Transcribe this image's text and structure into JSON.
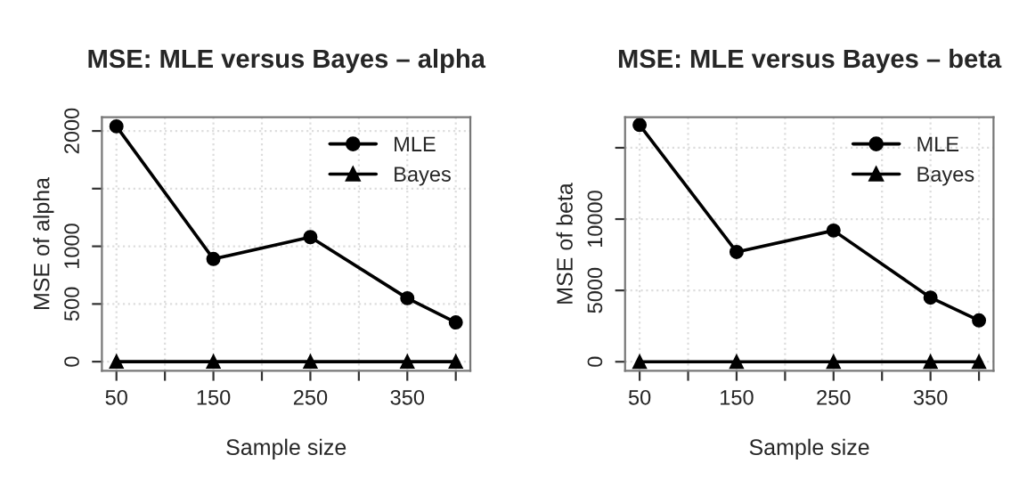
{
  "chart_data": [
    {
      "type": "line",
      "title": "MSE: MLE versus Bayes – alpha",
      "xlabel": "Sample size",
      "ylabel": "MSE of alpha",
      "x": [
        50,
        150,
        250,
        350,
        400
      ],
      "series": [
        {
          "name": "MLE",
          "color": "#000000",
          "marker": "circle",
          "values": [
            2040,
            890,
            1080,
            550,
            340
          ]
        },
        {
          "name": "Bayes",
          "color": "#000000",
          "marker": "triangle",
          "values": [
            0,
            0,
            0,
            0,
            0
          ]
        }
      ],
      "xlim": [
        35,
        415
      ],
      "xticks": [
        50,
        {
          "value": 100,
          "label": null
        },
        150,
        {
          "value": 200,
          "label": null
        },
        250,
        {
          "value": 300,
          "label": null
        },
        350,
        {
          "value": 400,
          "label": null
        }
      ],
      "ylim": [
        -80,
        2120
      ],
      "yticks": [
        0,
        500,
        1000,
        {
          "value": 1500,
          "label": null
        },
        2000
      ],
      "grid": true,
      "legend": "top right",
      "line_style": "solid"
    },
    {
      "type": "line",
      "title": "MSE: MLE versus Bayes – beta",
      "xlabel": "Sample size",
      "ylabel": "MSE of beta",
      "x": [
        50,
        150,
        250,
        350,
        400
      ],
      "series": [
        {
          "name": "MLE",
          "color": "#000000",
          "marker": "circle",
          "values": [
            16600,
            7700,
            9200,
            4500,
            2900
          ]
        },
        {
          "name": "Bayes",
          "color": "#000000",
          "marker": "triangle",
          "values": [
            0,
            0,
            0,
            0,
            0
          ]
        }
      ],
      "xlim": [
        35,
        415
      ],
      "xticks": [
        50,
        {
          "value": 100,
          "label": null
        },
        150,
        {
          "value": 200,
          "label": null
        },
        250,
        {
          "value": 300,
          "label": null
        },
        350,
        {
          "value": 400,
          "label": null
        }
      ],
      "ylim": [
        -640,
        17150
      ],
      "yticks": [
        0,
        5000,
        10000,
        {
          "value": 15000,
          "label": null
        }
      ],
      "grid": true,
      "legend": "top right",
      "line_style": "solid"
    }
  ]
}
